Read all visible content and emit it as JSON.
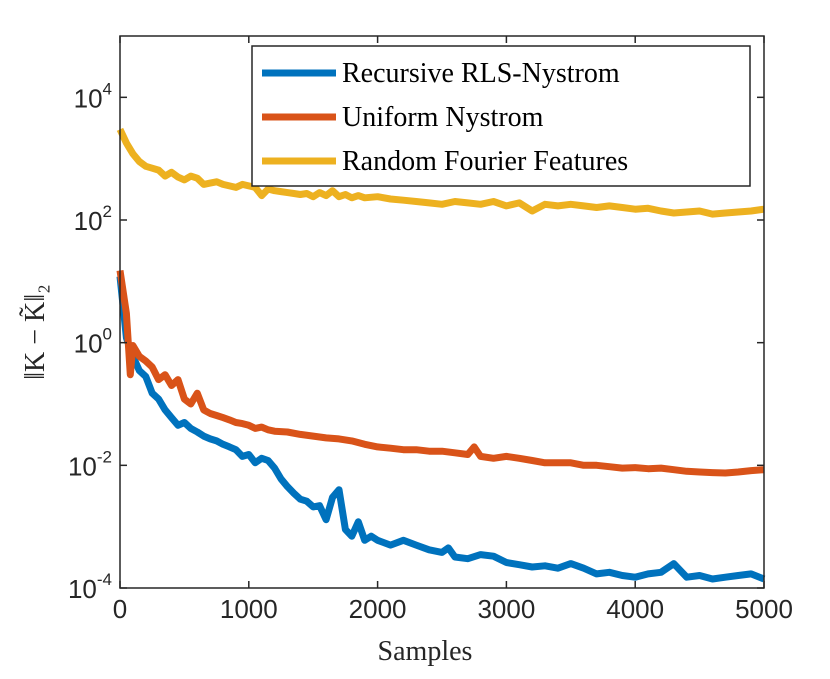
{
  "chart_data": {
    "type": "line",
    "xlabel": "Samples",
    "ylabel": "‖K − K̃‖₂",
    "xlim": [
      0,
      5000
    ],
    "ylim": [
      0.0001,
      100000
    ],
    "yscale": "log",
    "grid": false,
    "legend_position": "top-right",
    "x_ticks": [
      0,
      1000,
      2000,
      3000,
      4000,
      5000
    ],
    "y_ticks": [
      {
        "value": 0.0001,
        "base": "10",
        "exp": "-4"
      },
      {
        "value": 0.01,
        "base": "10",
        "exp": "-2"
      },
      {
        "value": 1,
        "base": "10",
        "exp": "0"
      },
      {
        "value": 100,
        "base": "10",
        "exp": "2"
      },
      {
        "value": 10000,
        "base": "10",
        "exp": "4"
      }
    ],
    "series": [
      {
        "name": "Recursive RLS-Nystrom",
        "color": "#0072BD",
        "points": [
          [
            0,
            12
          ],
          [
            50,
            1.2
          ],
          [
            100,
            0.6
          ],
          [
            150,
            0.35
          ],
          [
            200,
            0.28
          ],
          [
            250,
            0.15
          ],
          [
            300,
            0.12
          ],
          [
            350,
            0.08
          ],
          [
            400,
            0.06
          ],
          [
            450,
            0.045
          ],
          [
            500,
            0.05
          ],
          [
            550,
            0.04
          ],
          [
            600,
            0.035
          ],
          [
            650,
            0.03
          ],
          [
            700,
            0.027
          ],
          [
            750,
            0.025
          ],
          [
            800,
            0.022
          ],
          [
            850,
            0.02
          ],
          [
            900,
            0.018
          ],
          [
            950,
            0.014
          ],
          [
            1000,
            0.015
          ],
          [
            1050,
            0.011
          ],
          [
            1100,
            0.013
          ],
          [
            1150,
            0.012
          ],
          [
            1200,
            0.009
          ],
          [
            1250,
            0.006
          ],
          [
            1300,
            0.0045
          ],
          [
            1350,
            0.0035
          ],
          [
            1400,
            0.0028
          ],
          [
            1450,
            0.0026
          ],
          [
            1500,
            0.0021
          ],
          [
            1550,
            0.0022
          ],
          [
            1600,
            0.0013
          ],
          [
            1650,
            0.003
          ],
          [
            1700,
            0.004
          ],
          [
            1750,
            0.0009
          ],
          [
            1800,
            0.0007
          ],
          [
            1850,
            0.0012
          ],
          [
            1900,
            0.0006
          ],
          [
            1950,
            0.0007
          ],
          [
            2000,
            0.0006
          ],
          [
            2100,
            0.0005
          ],
          [
            2200,
            0.0006
          ],
          [
            2300,
            0.0005
          ],
          [
            2400,
            0.00042
          ],
          [
            2500,
            0.00038
          ],
          [
            2550,
            0.00045
          ],
          [
            2600,
            0.00032
          ],
          [
            2700,
            0.0003
          ],
          [
            2800,
            0.00035
          ],
          [
            2900,
            0.00033
          ],
          [
            3000,
            0.00026
          ],
          [
            3100,
            0.00024
          ],
          [
            3200,
            0.00022
          ],
          [
            3300,
            0.00023
          ],
          [
            3400,
            0.00021
          ],
          [
            3500,
            0.00025
          ],
          [
            3600,
            0.00021
          ],
          [
            3700,
            0.00017
          ],
          [
            3800,
            0.00018
          ],
          [
            3900,
            0.00016
          ],
          [
            4000,
            0.00015
          ],
          [
            4100,
            0.00017
          ],
          [
            4200,
            0.00018
          ],
          [
            4300,
            0.00025
          ],
          [
            4400,
            0.00015
          ],
          [
            4500,
            0.00016
          ],
          [
            4600,
            0.00014
          ],
          [
            4700,
            0.00015
          ],
          [
            4800,
            0.00016
          ],
          [
            4900,
            0.00017
          ],
          [
            5000,
            0.00014
          ]
        ]
      },
      {
        "name": "Uniform Nystrom",
        "color": "#D95319",
        "points": [
          [
            0,
            15
          ],
          [
            50,
            3
          ],
          [
            80,
            0.3
          ],
          [
            100,
            0.9
          ],
          [
            150,
            0.6
          ],
          [
            200,
            0.5
          ],
          [
            250,
            0.4
          ],
          [
            300,
            0.25
          ],
          [
            350,
            0.3
          ],
          [
            400,
            0.2
          ],
          [
            450,
            0.25
          ],
          [
            500,
            0.12
          ],
          [
            550,
            0.1
          ],
          [
            600,
            0.15
          ],
          [
            650,
            0.08
          ],
          [
            700,
            0.07
          ],
          [
            750,
            0.065
          ],
          [
            800,
            0.06
          ],
          [
            850,
            0.055
          ],
          [
            900,
            0.05
          ],
          [
            950,
            0.048
          ],
          [
            1000,
            0.045
          ],
          [
            1050,
            0.04
          ],
          [
            1100,
            0.042
          ],
          [
            1150,
            0.038
          ],
          [
            1200,
            0.036
          ],
          [
            1300,
            0.035
          ],
          [
            1400,
            0.032
          ],
          [
            1500,
            0.03
          ],
          [
            1600,
            0.028
          ],
          [
            1700,
            0.027
          ],
          [
            1800,
            0.025
          ],
          [
            1900,
            0.022
          ],
          [
            2000,
            0.02
          ],
          [
            2100,
            0.019
          ],
          [
            2200,
            0.018
          ],
          [
            2300,
            0.018
          ],
          [
            2400,
            0.017
          ],
          [
            2500,
            0.017
          ],
          [
            2600,
            0.016
          ],
          [
            2700,
            0.015
          ],
          [
            2750,
            0.02
          ],
          [
            2800,
            0.014
          ],
          [
            2900,
            0.013
          ],
          [
            3000,
            0.014
          ],
          [
            3100,
            0.013
          ],
          [
            3200,
            0.012
          ],
          [
            3300,
            0.011
          ],
          [
            3400,
            0.011
          ],
          [
            3500,
            0.011
          ],
          [
            3600,
            0.01
          ],
          [
            3700,
            0.01
          ],
          [
            3800,
            0.0095
          ],
          [
            3900,
            0.009
          ],
          [
            4000,
            0.0092
          ],
          [
            4100,
            0.0088
          ],
          [
            4200,
            0.009
          ],
          [
            4300,
            0.0085
          ],
          [
            4400,
            0.008
          ],
          [
            4500,
            0.0078
          ],
          [
            4600,
            0.0076
          ],
          [
            4700,
            0.0075
          ],
          [
            4800,
            0.0078
          ],
          [
            4900,
            0.0082
          ],
          [
            5000,
            0.0085
          ]
        ]
      },
      {
        "name": "Random Fourier Features",
        "color": "#EDB120",
        "points": [
          [
            0,
            3000
          ],
          [
            50,
            1800
          ],
          [
            100,
            1200
          ],
          [
            150,
            900
          ],
          [
            200,
            750
          ],
          [
            250,
            700
          ],
          [
            300,
            650
          ],
          [
            350,
            520
          ],
          [
            400,
            600
          ],
          [
            450,
            500
          ],
          [
            500,
            450
          ],
          [
            550,
            520
          ],
          [
            600,
            480
          ],
          [
            650,
            380
          ],
          [
            700,
            400
          ],
          [
            750,
            420
          ],
          [
            800,
            380
          ],
          [
            850,
            360
          ],
          [
            900,
            340
          ],
          [
            950,
            380
          ],
          [
            1000,
            360
          ],
          [
            1050,
            340
          ],
          [
            1100,
            250
          ],
          [
            1150,
            320
          ],
          [
            1200,
            300
          ],
          [
            1250,
            290
          ],
          [
            1300,
            280
          ],
          [
            1350,
            270
          ],
          [
            1400,
            260
          ],
          [
            1450,
            270
          ],
          [
            1500,
            240
          ],
          [
            1550,
            280
          ],
          [
            1600,
            250
          ],
          [
            1650,
            300
          ],
          [
            1700,
            240
          ],
          [
            1750,
            260
          ],
          [
            1800,
            230
          ],
          [
            1850,
            250
          ],
          [
            1900,
            230
          ],
          [
            2000,
            240
          ],
          [
            2100,
            220
          ],
          [
            2200,
            210
          ],
          [
            2300,
            200
          ],
          [
            2400,
            190
          ],
          [
            2500,
            180
          ],
          [
            2600,
            200
          ],
          [
            2700,
            190
          ],
          [
            2800,
            180
          ],
          [
            2900,
            200
          ],
          [
            3000,
            170
          ],
          [
            3100,
            190
          ],
          [
            3200,
            140
          ],
          [
            3300,
            180
          ],
          [
            3400,
            170
          ],
          [
            3500,
            180
          ],
          [
            3600,
            170
          ],
          [
            3700,
            160
          ],
          [
            3800,
            170
          ],
          [
            3900,
            160
          ],
          [
            4000,
            150
          ],
          [
            4100,
            155
          ],
          [
            4200,
            140
          ],
          [
            4300,
            130
          ],
          [
            4400,
            135
          ],
          [
            4500,
            140
          ],
          [
            4600,
            125
          ],
          [
            4700,
            130
          ],
          [
            4800,
            135
          ],
          [
            4900,
            140
          ],
          [
            5000,
            150
          ]
        ]
      }
    ]
  }
}
